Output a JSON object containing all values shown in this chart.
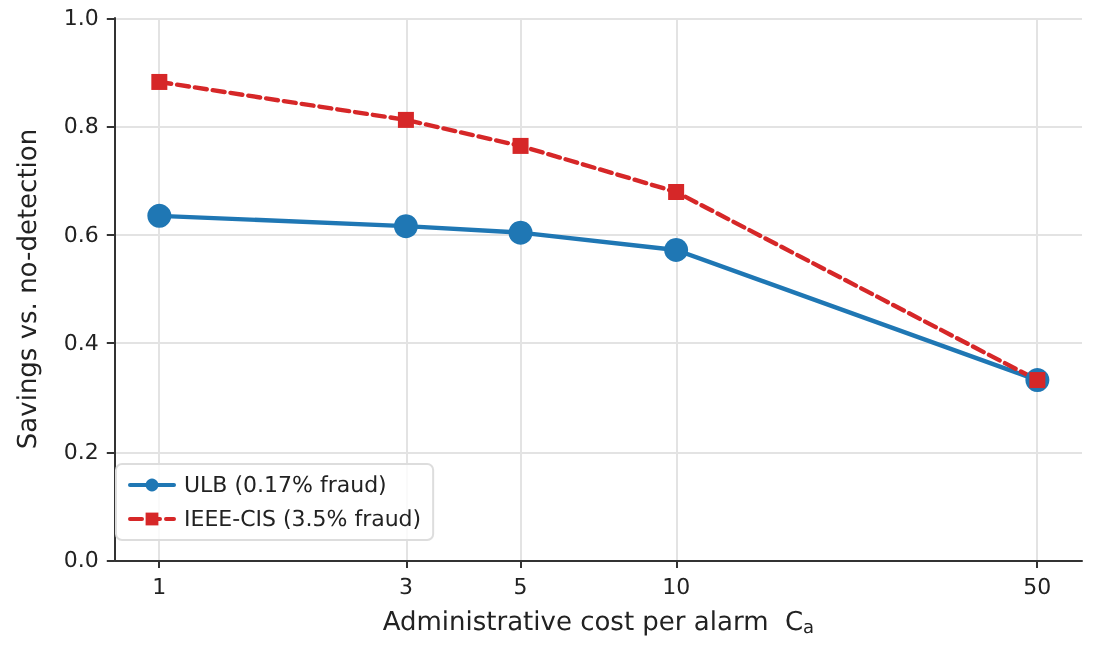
{
  "chart_data": {
    "type": "line",
    "xlabel": "Administrative cost per alarm  C$_{a}$",
    "ylabel": "Savings vs. no-detection",
    "x": [
      1,
      3,
      5,
      10,
      50
    ],
    "series": [
      {
        "name": "ULB (0.17% fraud)",
        "color": "#1f77b4",
        "values": [
          0.635,
          0.616,
          0.604,
          0.572,
          0.332
        ],
        "marker": "circle",
        "line_style": "solid"
      },
      {
        "name": "IEEE-CIS (3.5% fraud)",
        "color": "#d62728",
        "values": [
          0.882,
          0.812,
          0.764,
          0.679,
          0.332
        ],
        "marker": "square",
        "line_style": "dashed"
      }
    ],
    "log": "x",
    "xlim": [
      0.82,
      61
    ],
    "xticks": [
      1,
      3,
      5,
      10,
      50
    ],
    "ylim": [
      0,
      1
    ],
    "yticks": [
      {
        "value": 0,
        "label": "0.0"
      },
      {
        "value": 0.2,
        "label": "0.2"
      },
      {
        "value": 0.4,
        "label": "0.4"
      },
      {
        "value": 0.6,
        "label": "0.6"
      },
      {
        "value": 0.8,
        "label": "0.8"
      },
      {
        "value": 1,
        "label": "1.0"
      }
    ],
    "grid": true,
    "legend": "bottom left"
  }
}
